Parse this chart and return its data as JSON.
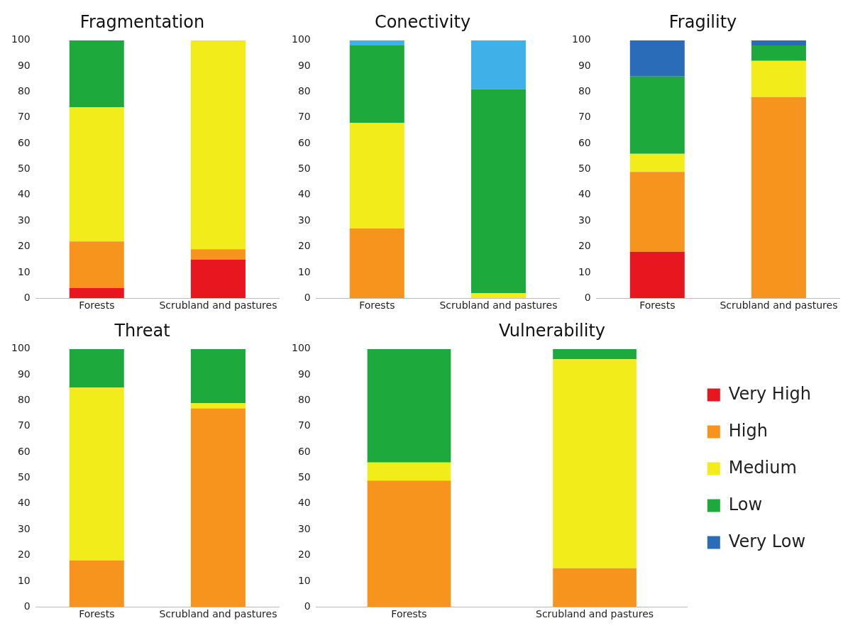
{
  "chart_data": [
    {
      "type": "bar",
      "title": "Fragmentation",
      "stacked": true,
      "categories": [
        "Forests",
        "Scrubland and pastures"
      ],
      "ylim": [
        0,
        100
      ],
      "yticks": [
        0,
        10,
        20,
        30,
        40,
        50,
        60,
        70,
        80,
        90,
        100
      ],
      "grid": false,
      "legend": false,
      "series": [
        {
          "color": "#e8171f",
          "values": [
            4,
            15
          ]
        },
        {
          "color": "#f7941d",
          "values": [
            18,
            4
          ]
        },
        {
          "color": "#f2ec1b",
          "values": [
            52,
            81
          ]
        },
        {
          "color": "#1ea93c",
          "values": [
            26,
            0
          ]
        }
      ]
    },
    {
      "type": "bar",
      "title": "Conectivity",
      "stacked": true,
      "categories": [
        "Forests",
        "Scrubland and pastures"
      ],
      "ylim": [
        0,
        100
      ],
      "yticks": [
        0,
        10,
        20,
        30,
        40,
        50,
        60,
        70,
        80,
        90,
        100
      ],
      "grid": false,
      "legend": false,
      "series": [
        {
          "color": "#f7941d",
          "values": [
            27,
            0
          ]
        },
        {
          "color": "#f2ec1b",
          "values": [
            41,
            2
          ]
        },
        {
          "color": "#1ea93c",
          "values": [
            30,
            79
          ]
        },
        {
          "color": "#3fb1e8",
          "values": [
            2,
            19
          ]
        }
      ]
    },
    {
      "type": "bar",
      "title": "Fragility",
      "stacked": true,
      "categories": [
        "Forests",
        "Scrubland and pastures"
      ],
      "ylim": [
        0,
        100
      ],
      "yticks": [
        0,
        10,
        20,
        30,
        40,
        50,
        60,
        70,
        80,
        90,
        100
      ],
      "grid": false,
      "legend": false,
      "series": [
        {
          "color": "#e8171f",
          "values": [
            18,
            0
          ]
        },
        {
          "color": "#f7941d",
          "values": [
            31,
            78
          ]
        },
        {
          "color": "#f2ec1b",
          "values": [
            7,
            14
          ]
        },
        {
          "color": "#1ea93c",
          "values": [
            30,
            6
          ]
        },
        {
          "color": "#2b6cb8",
          "values": [
            14,
            2
          ]
        }
      ]
    },
    {
      "type": "bar",
      "title": "Threat",
      "stacked": true,
      "categories": [
        "Forests",
        "Scrubland and pastures"
      ],
      "ylim": [
        0,
        100
      ],
      "yticks": [
        0,
        10,
        20,
        30,
        40,
        50,
        60,
        70,
        80,
        90,
        100
      ],
      "grid": false,
      "legend": false,
      "series": [
        {
          "color": "#f7941d",
          "values": [
            18,
            77
          ]
        },
        {
          "color": "#f2ec1b",
          "values": [
            67,
            2
          ]
        },
        {
          "color": "#1ea93c",
          "values": [
            15,
            21
          ]
        }
      ]
    },
    {
      "type": "bar",
      "title": "Vulnerability",
      "stacked": true,
      "categories": [
        "Forests",
        "Scrubland and pastures"
      ],
      "ylim": [
        0,
        100
      ],
      "yticks": [
        0,
        10,
        20,
        30,
        40,
        50,
        60,
        70,
        80,
        90,
        100
      ],
      "grid": false,
      "legend": "right",
      "series": [
        {
          "name": "Very High",
          "color": "#e8171f",
          "values": [
            0,
            0
          ]
        },
        {
          "name": "High",
          "color": "#f7941d",
          "values": [
            49,
            15
          ]
        },
        {
          "name": "Medium",
          "color": "#f2ec1b",
          "values": [
            7,
            81
          ]
        },
        {
          "name": "Low",
          "color": "#1ea93c",
          "values": [
            44,
            4
          ]
        },
        {
          "name": "Very Low",
          "color": "#2b6cb8",
          "values": [
            0,
            0
          ]
        }
      ]
    }
  ]
}
